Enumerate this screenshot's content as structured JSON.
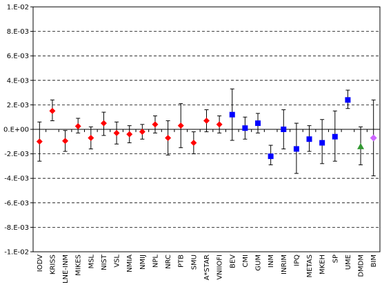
{
  "chart_data": {
    "type": "scatter",
    "title": "",
    "xlabel": "",
    "ylabel": "",
    "ylim": [
      -0.01,
      0.01
    ],
    "y_ticks": [
      -0.01,
      -0.008,
      -0.006,
      -0.004,
      -0.002,
      0,
      0.002,
      0.004,
      0.006,
      0.008,
      0.01
    ],
    "y_tick_labels": [
      "-1.E-02",
      "-8.E-03",
      "-6.E-03",
      "-4.E-03",
      "-2.E-03",
      "0.E+00",
      "2.E-03",
      "4.E-03",
      "6.E-03",
      "8.E-03",
      "1.E-02"
    ],
    "grid": "horizontal dashed",
    "legend": "none",
    "categories": [
      "IODV",
      "KRISS",
      "LNE-INM",
      "MIKES",
      "MSL",
      "NIST",
      "VSL",
      "NMIA",
      "NMIJ",
      "NPL",
      "NRC",
      "PTB",
      "SMU",
      "A*STAR",
      "VNIIOFI",
      "BEV",
      "CMI",
      "GUM",
      "INM",
      "INRIM",
      "IPQ",
      "METAS",
      "MKEH",
      "SP",
      "UME",
      "DMDM",
      "BIM"
    ],
    "series": [
      {
        "marker": "diamond",
        "color": "#ff0000",
        "points": [
          {
            "category": "IODV",
            "y": -0.001,
            "err_low": -0.0026,
            "err_high": 0.0006
          },
          {
            "category": "KRISS",
            "y": 0.0015,
            "err_low": 0.0007,
            "err_high": 0.0024
          },
          {
            "category": "LNE-INM",
            "y": -0.00095,
            "err_low": -0.0018,
            "err_high": -0.0001
          },
          {
            "category": "MIKES",
            "y": 0.00025,
            "err_low": -0.0003,
            "err_high": 0.0009
          },
          {
            "category": "MSL",
            "y": -0.0007,
            "err_low": -0.0016,
            "err_high": 0.0002
          },
          {
            "category": "NIST",
            "y": 0.0005,
            "err_low": -0.0005,
            "err_high": 0.0014
          },
          {
            "category": "VSL",
            "y": -0.0003,
            "err_low": -0.0012,
            "err_high": 0.0006
          },
          {
            "category": "NMIA",
            "y": -0.0004,
            "err_low": -0.0011,
            "err_high": 0.0003
          },
          {
            "category": "NMIJ",
            "y": -0.0002,
            "err_low": -0.0008,
            "err_high": 0.0004
          },
          {
            "category": "NPL",
            "y": 0.0004,
            "err_low": -0.0003,
            "err_high": 0.0011
          },
          {
            "category": "NRC",
            "y": -0.0007,
            "err_low": -0.0021,
            "err_high": 0.0007
          },
          {
            "category": "PTB",
            "y": 0.0003,
            "err_low": -0.0015,
            "err_high": 0.0021
          },
          {
            "category": "SMU",
            "y": -0.0011,
            "err_low": -0.002,
            "err_high": -0.0002
          },
          {
            "category": "A*STAR",
            "y": 0.0007,
            "err_low": -0.0002,
            "err_high": 0.0016
          },
          {
            "category": "VNIIOFI",
            "y": 0.0004,
            "err_low": -0.0003,
            "err_high": 0.0011
          }
        ]
      },
      {
        "marker": "square",
        "color": "#0000ff",
        "points": [
          {
            "category": "BEV",
            "y": 0.0012,
            "err_low": -0.0009,
            "err_high": 0.0033
          },
          {
            "category": "CMI",
            "y": 0.0001,
            "err_low": -0.0008,
            "err_high": 0.001
          },
          {
            "category": "GUM",
            "y": 0.0005,
            "err_low": -0.0003,
            "err_high": 0.0013
          },
          {
            "category": "INM",
            "y": -0.0022,
            "err_low": -0.0029,
            "err_high": -0.0013
          },
          {
            "category": "INRIM",
            "y": 0.0,
            "err_low": -0.0016,
            "err_high": 0.0016
          },
          {
            "category": "IPQ",
            "y": -0.0016,
            "err_low": -0.0036,
            "err_high": 0.0005
          },
          {
            "category": "METAS",
            "y": -0.0008,
            "err_low": -0.0018,
            "err_high": 0.0003
          },
          {
            "category": "MKEH",
            "y": -0.0011,
            "err_low": -0.0028,
            "err_high": 0.0008
          },
          {
            "category": "SP",
            "y": -0.0006,
            "err_low": -0.0026,
            "err_high": 0.0015
          },
          {
            "category": "UME",
            "y": 0.0024,
            "err_low": 0.0017,
            "err_high": 0.0032
          }
        ]
      },
      {
        "marker": "triangle",
        "color": "#339933",
        "points": [
          {
            "category": "DMDM",
            "y": -0.0014,
            "err_low": -0.0029,
            "err_high": 0.0002
          }
        ]
      },
      {
        "marker": "diamond",
        "color": "#cc66ff",
        "points": [
          {
            "category": "BIM",
            "y": -0.0007,
            "err_low": -0.0038,
            "err_high": 0.0024
          }
        ]
      }
    ]
  }
}
